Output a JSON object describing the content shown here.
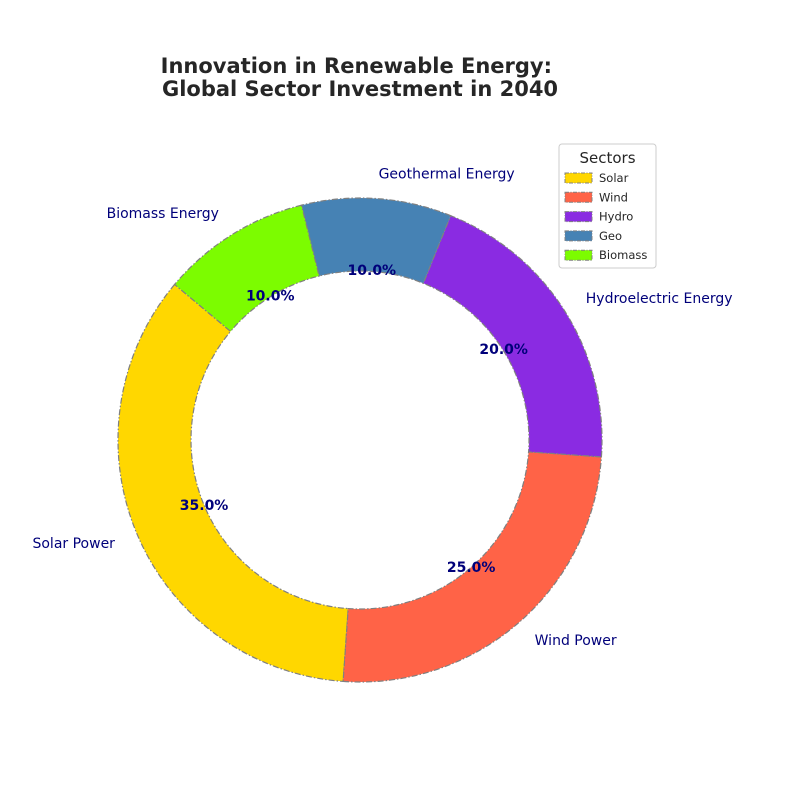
{
  "chart_data": {
    "type": "pie",
    "title": "Innovation in Renewable Energy:\nGlobal Sector Investment in 2040",
    "donut": true,
    "categories": [
      "Solar Power",
      "Wind Power",
      "Hydroelectric Energy",
      "Geothermal Energy",
      "Biomass Energy"
    ],
    "values": [
      35,
      25,
      20,
      10,
      10
    ],
    "value_labels": [
      "35.0%",
      "25.0%",
      "20.0%",
      "10.0%",
      "10.0%"
    ],
    "colors": [
      "#ffd700",
      "#ff6347",
      "#8a2be2",
      "#4682b4",
      "#7cfc00"
    ],
    "legend": {
      "title": "Sectors",
      "entries": [
        "Solar",
        "Wind",
        "Hydro",
        "Geo",
        "Biomass"
      ],
      "placement": "top-right"
    }
  }
}
